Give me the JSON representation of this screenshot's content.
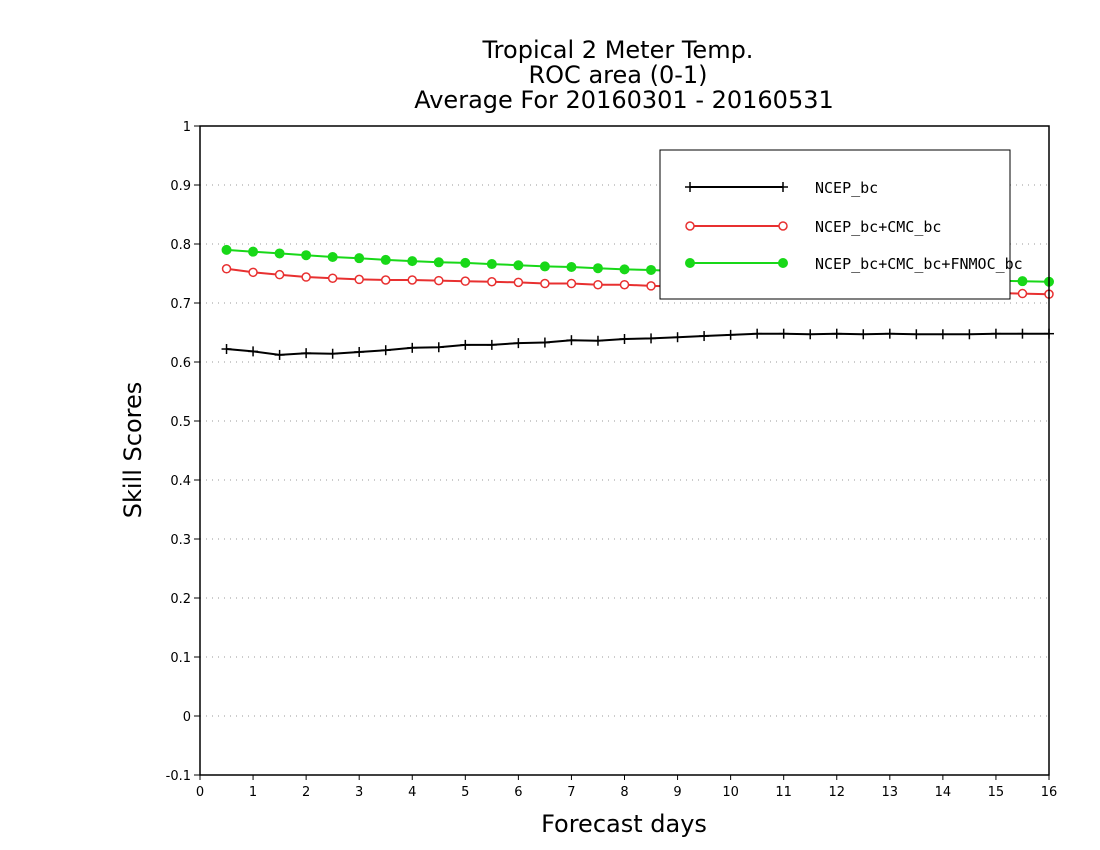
{
  "chart_data": {
    "type": "line",
    "title": [
      "Tropical 2 Meter Temp.",
      "ROC area (0-1)",
      "Average For 20160301 - 20160531"
    ],
    "xlabel": "Forecast days",
    "ylabel": "Skill Scores",
    "xlim": [
      0,
      16
    ],
    "ylim": [
      -0.1,
      1
    ],
    "xticks": [
      "0",
      "1",
      "2",
      "3",
      "4",
      "5",
      "6",
      "7",
      "8",
      "9",
      "10",
      "11",
      "12",
      "13",
      "14",
      "15",
      "16"
    ],
    "yticks": [
      "-0.1",
      "0",
      "0.1",
      "0.2",
      "0.3",
      "0.4",
      "0.5",
      "0.6",
      "0.7",
      "0.8",
      "0.9",
      "1"
    ],
    "grid": "horizontal dotted",
    "legend_position": "top-right",
    "x": [
      0.5,
      1,
      1.5,
      2,
      2.5,
      3,
      3.5,
      4,
      4.5,
      5,
      5.5,
      6,
      6.5,
      7,
      7.5,
      8,
      8.5,
      9,
      9.5,
      10,
      10.5,
      11,
      11.5,
      12,
      12.5,
      13,
      13.5,
      14,
      14.5,
      15,
      15.5,
      16
    ],
    "series": [
      {
        "name": "NCEP_bc",
        "color": "#000000",
        "marker": "plus",
        "values": [
          0.622,
          0.618,
          0.612,
          0.615,
          0.614,
          0.617,
          0.62,
          0.624,
          0.625,
          0.629,
          0.629,
          0.632,
          0.633,
          0.637,
          0.636,
          0.639,
          0.64,
          0.642,
          0.644,
          0.646,
          0.648,
          0.648,
          0.647,
          0.648,
          0.647,
          0.648,
          0.647,
          0.647,
          0.647,
          0.648,
          0.648,
          0.648
        ]
      },
      {
        "name": "NCEP_bc+CMC_bc",
        "color": "#e83030",
        "marker": "open-circle",
        "values": [
          0.758,
          0.752,
          0.748,
          0.744,
          0.742,
          0.74,
          0.739,
          0.739,
          0.738,
          0.737,
          0.736,
          0.735,
          0.733,
          0.733,
          0.731,
          0.731,
          0.729,
          0.728,
          0.727,
          0.726,
          0.725,
          0.724,
          0.723,
          0.722,
          0.721,
          0.72,
          0.719,
          0.719,
          0.718,
          0.717,
          0.716,
          0.715
        ]
      },
      {
        "name": "NCEP_bc+CMC_bc+FNMOC_bc",
        "color": "#18d818",
        "marker": "filled-circle",
        "values": [
          0.79,
          0.787,
          0.784,
          0.781,
          0.778,
          0.776,
          0.773,
          0.771,
          0.769,
          0.768,
          0.766,
          0.764,
          0.762,
          0.761,
          0.759,
          0.757,
          0.756,
          0.754,
          0.752,
          0.75,
          0.749,
          0.748,
          0.746,
          0.745,
          0.744,
          0.742,
          0.741,
          0.74,
          0.739,
          0.738,
          0.737,
          0.736
        ]
      }
    ]
  }
}
